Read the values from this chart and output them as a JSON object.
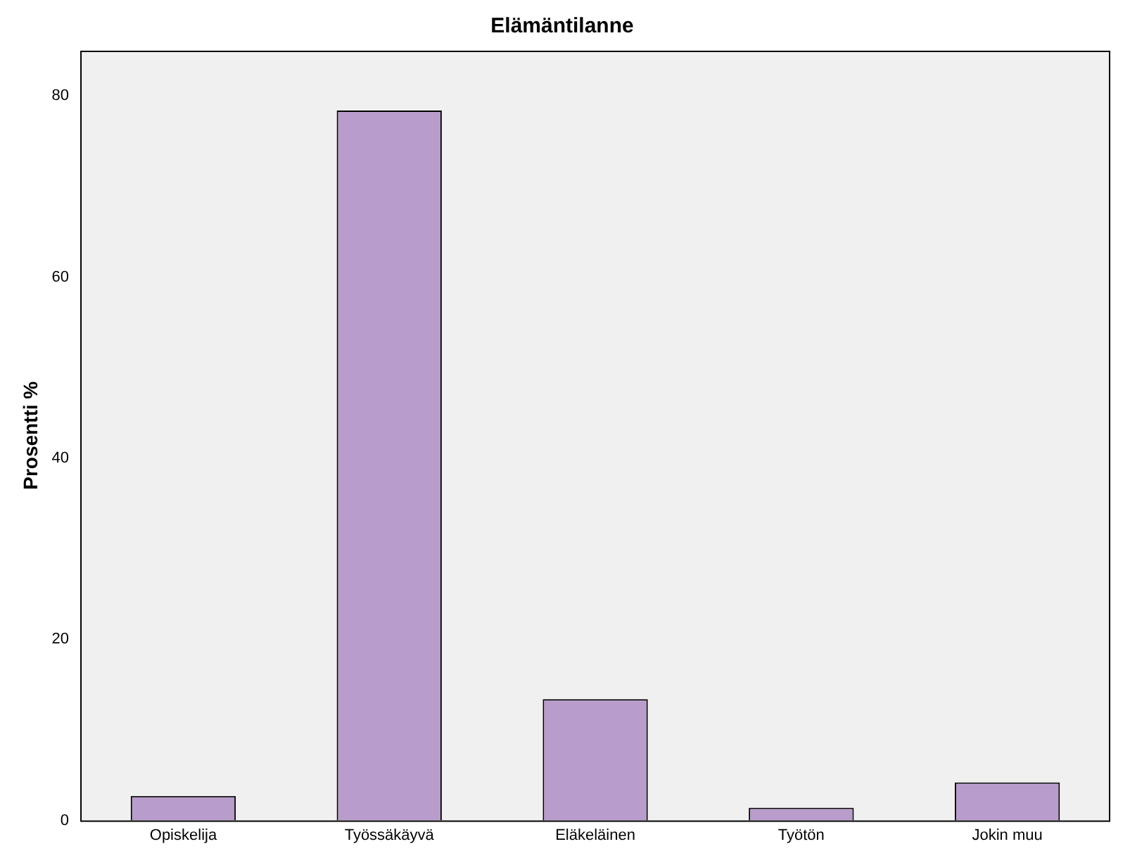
{
  "chart_data": {
    "type": "bar",
    "title": "Elämäntilanne",
    "ylabel": "Prosentti %",
    "categories": [
      "Opiskelija",
      "Työssäkäyvä",
      "Eläkeläinen",
      "Työtön",
      "Jokin muu"
    ],
    "values": [
      2.7,
      78.4,
      13.4,
      1.4,
      4.2
    ],
    "color": "#b89ccb",
    "ylim": [
      0,
      85
    ],
    "yticks": [
      0,
      20,
      40,
      60,
      80
    ],
    "grid": false,
    "legend": false
  }
}
